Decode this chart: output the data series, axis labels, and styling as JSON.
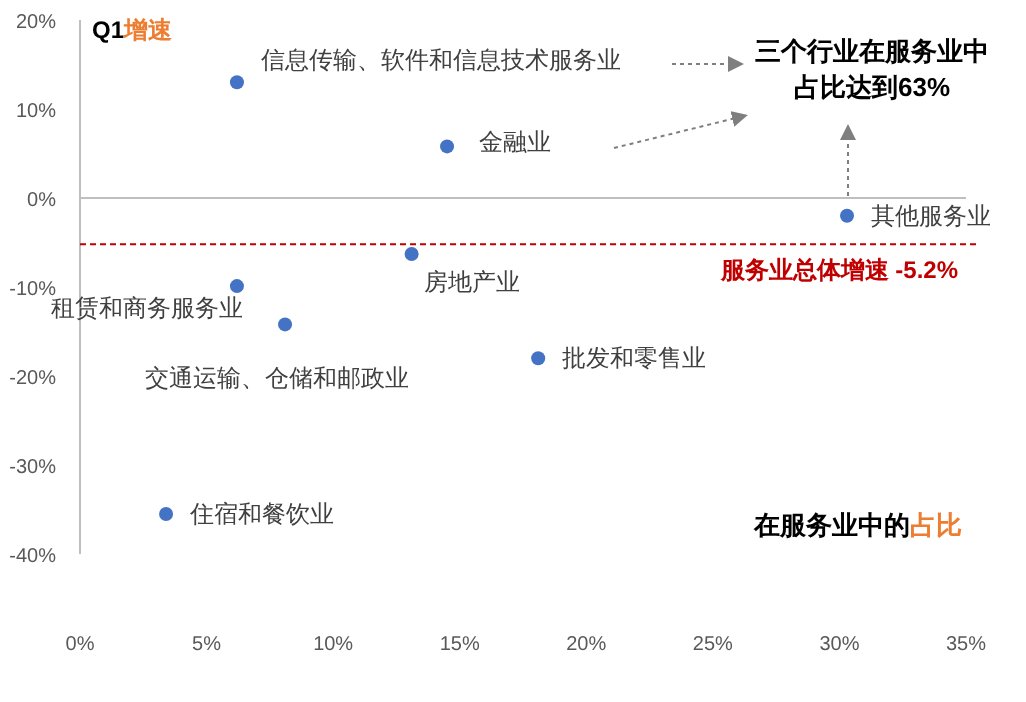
{
  "chart_data": {
    "type": "scatter",
    "title": "三个行业在服务业中占比达到63%",
    "ylabel": "Q1增速",
    "xlabel": "在服务业中的占比",
    "xlim": [
      0,
      35
    ],
    "xticks": [
      {
        "value": 0,
        "label": "0%"
      },
      {
        "value": 5,
        "label": "5%"
      },
      {
        "value": 10,
        "label": "10%"
      },
      {
        "value": 15,
        "label": "15%"
      },
      {
        "value": 20,
        "label": "20%"
      },
      {
        "value": 25,
        "label": "25%"
      },
      {
        "value": 30,
        "label": "30%"
      },
      {
        "value": 35,
        "label": "35%"
      }
    ],
    "ylim": [
      -40,
      20
    ],
    "yticks": [
      {
        "value": -40,
        "label": "-40%"
      },
      {
        "value": -30,
        "label": "-30%"
      },
      {
        "value": -20,
        "label": "-20%"
      },
      {
        "value": -10,
        "label": "-10%"
      },
      {
        "value": 0,
        "label": "0%"
      },
      {
        "value": 10,
        "label": "10%"
      },
      {
        "value": 20,
        "label": "20%"
      }
    ],
    "grid": false,
    "legend": false,
    "marker": "circle",
    "ref_lines": [
      {
        "axis": "y",
        "value": 0,
        "color": "#bfbfbf",
        "line_style": "solid"
      },
      {
        "axis": "y",
        "value": -5.2,
        "label": "服务业总体增速 -5.2%",
        "color": "#c00000",
        "line_style": "dashed"
      }
    ],
    "series": [
      {
        "name": "信息传输、软件和信息技术服务业",
        "color": "#4472c4",
        "x": [
          6.2
        ],
        "values": [
          13.0
        ]
      },
      {
        "name": "金融业",
        "color": "#4472c4",
        "x": [
          14.5
        ],
        "values": [
          5.8
        ]
      },
      {
        "name": "其他服务业",
        "color": "#4472c4",
        "x": [
          30.3
        ],
        "values": [
          -2.0
        ]
      },
      {
        "name": "房地产业",
        "color": "#4472c4",
        "x": [
          13.1
        ],
        "values": [
          -6.3
        ]
      },
      {
        "name": "租赁和商务服务业",
        "color": "#4472c4",
        "x": [
          6.2
        ],
        "values": [
          -9.9
        ]
      },
      {
        "name": "交通运输、仓储和邮政业",
        "color": "#4472c4",
        "x": [
          8.1
        ],
        "values": [
          -14.2
        ]
      },
      {
        "name": "批发和零售业",
        "color": "#4472c4",
        "x": [
          18.1
        ],
        "values": [
          -18.0
        ]
      },
      {
        "name": "住宿和餐饮业",
        "color": "#4472c4",
        "x": [
          3.4
        ],
        "values": [
          -35.5
        ]
      }
    ]
  }
}
